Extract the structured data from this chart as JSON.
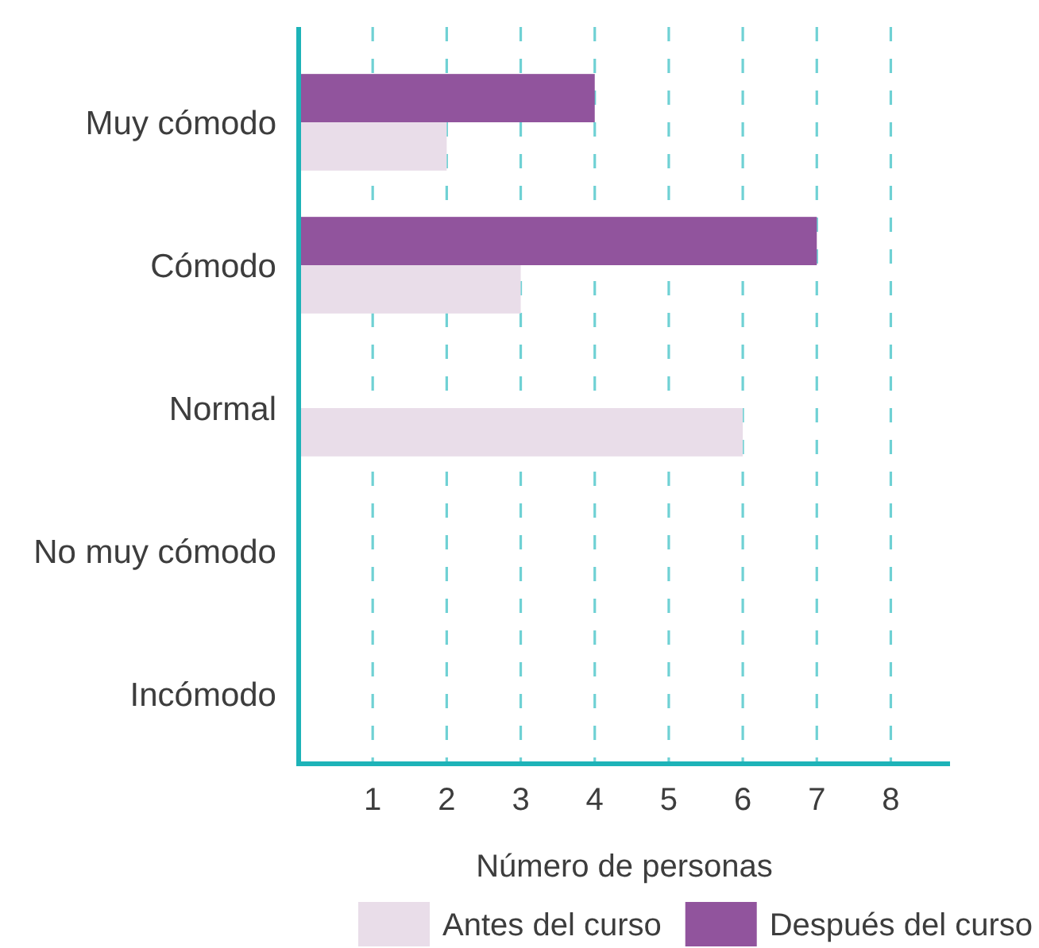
{
  "chart_data": {
    "type": "bar",
    "orientation": "horizontal",
    "categories": [
      "Muy cómodo",
      "Cómodo",
      "Normal",
      "No muy cómodo",
      "Incómodo"
    ],
    "series": [
      {
        "name": "Antes del curso",
        "color": "#e9dde9",
        "values": [
          2,
          3,
          6,
          0,
          0
        ]
      },
      {
        "name": "Después del curso",
        "color": "#91549d",
        "values": [
          4,
          7,
          0,
          0,
          0
        ]
      }
    ],
    "xlabel": "Número de personas",
    "xlim": [
      0,
      8.8
    ],
    "xticks": [
      1,
      2,
      3,
      4,
      5,
      6,
      7,
      8
    ],
    "grid": "x",
    "legend": "bottom"
  }
}
